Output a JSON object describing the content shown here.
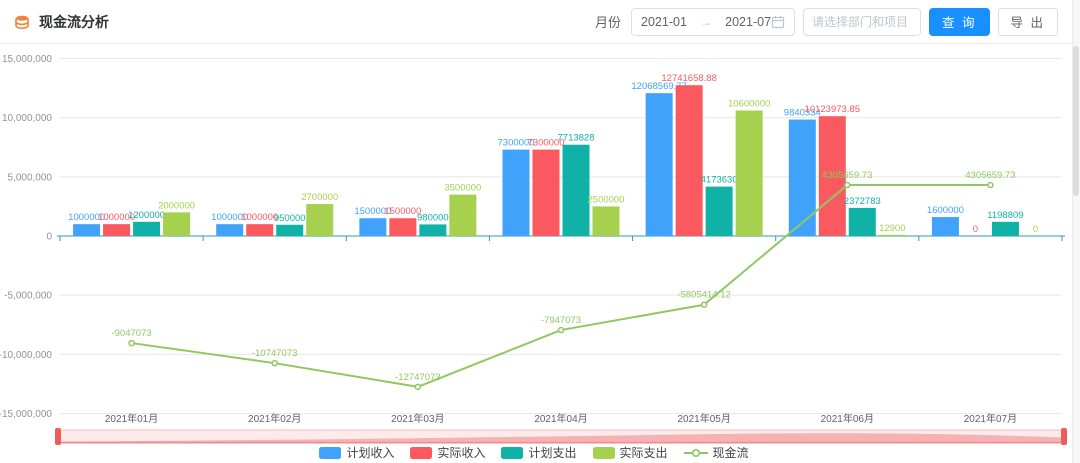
{
  "header": {
    "title": "现金流分析",
    "month_label": "月份",
    "date_range": {
      "start": "2021-01",
      "separator": "→",
      "end": "2021-07"
    },
    "filter_placeholder": "请选择部门和项目",
    "query_button": "查 询",
    "export_button": "导 出"
  },
  "colors": {
    "accent_blue": "#1890ff",
    "plan_income": "#41a2fc",
    "actual_income": "#f9595f",
    "plan_expense": "#10b2a7",
    "actual_expense": "#a6d14e",
    "cashflow_line": "#8fc860",
    "axis_line": "#2f9bb0",
    "grid_line": "#e8e8e8",
    "datazoom_track": "#fdeaea",
    "datazoom_border": "#f5c2c2",
    "datazoom_fill": "#f5a8a8",
    "datazoom_handle": "#ee5c5c"
  },
  "chart_data": {
    "type": "bar+line",
    "title": "现金流分析",
    "categories": [
      "2021年01月",
      "2021年02月",
      "2021年03月",
      "2021年04月",
      "2021年05月",
      "2021年06月",
      "2021年07月"
    ],
    "series": [
      {
        "name": "计划收入",
        "type": "bar",
        "color": "#41a2fc",
        "values": [
          1000000,
          1000000,
          1500000,
          7300000,
          12068569.77,
          9840334,
          1600000
        ]
      },
      {
        "name": "实际收入",
        "type": "bar",
        "color": "#f9595f",
        "values": [
          1000000,
          1000000,
          1500000,
          7300000,
          12741658.88,
          10123973.85,
          0
        ]
      },
      {
        "name": "计划支出",
        "type": "bar",
        "color": "#10b2a7",
        "values": [
          1200000,
          950000,
          980000,
          7713828,
          4173630,
          2372783,
          1198809
        ]
      },
      {
        "name": "实际支出",
        "type": "bar",
        "color": "#a6d14e",
        "values": [
          2000000,
          2700000,
          3500000,
          2500000,
          10600000,
          12900,
          0
        ]
      },
      {
        "name": "现金流",
        "type": "line",
        "color": "#8fc860",
        "values": [
          -9047073,
          -10747073,
          -12747073,
          -7947073,
          -5805414.12,
          4305659.73,
          4305659.73
        ]
      }
    ],
    "y_axis": {
      "ticks": [
        {
          "value": 15000000,
          "label": "15,000,000"
        },
        {
          "value": 10000000,
          "label": "10,000,000"
        },
        {
          "value": 5000000,
          "label": "5,000,000"
        },
        {
          "value": 0,
          "label": "0"
        },
        {
          "value": -5000000,
          "label": "-5,000,000"
        },
        {
          "value": -10000000,
          "label": "-10,000,000"
        },
        {
          "value": -15000000,
          "label": "-15,000,000"
        }
      ]
    },
    "ylim": [
      -15000000,
      15000000
    ],
    "grid": true,
    "legend_position": "bottom",
    "datazoom": true
  }
}
